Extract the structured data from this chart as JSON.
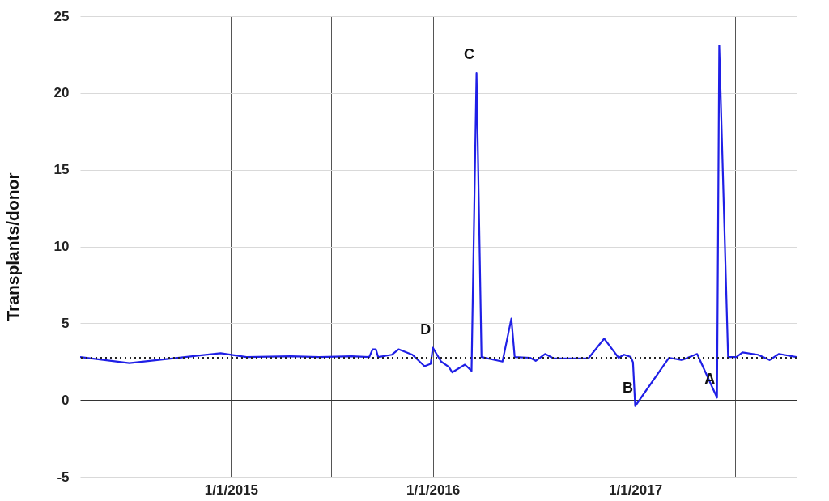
{
  "chart_data": {
    "type": "line",
    "ylabel": "Transplants/donor",
    "x": [
      "2014-04-03",
      "2014-07-01",
      "2014-12-13",
      "2015-01-29",
      "2015-04-19",
      "2015-06-09",
      "2015-08-07",
      "2015-09-08",
      "2015-09-14",
      "2015-09-20",
      "2015-09-24",
      "2015-10-19",
      "2015-10-31",
      "2015-11-25",
      "2015-12-17",
      "2015-12-28",
      "2016-01-01",
      "2016-01-16",
      "2016-01-30",
      "2016-02-05",
      "2016-02-28",
      "2016-03-11",
      "2016-03-20",
      "2016-03-29",
      "2016-05-06",
      "2016-05-22",
      "2016-05-28",
      "2016-06-25",
      "2016-07-05",
      "2016-07-22",
      "2016-08-07",
      "2016-10-08",
      "2016-11-06",
      "2016-12-02",
      "2016-12-12",
      "2016-12-24",
      "2016-12-28",
      "2017-01-01",
      "2017-03-03",
      "2017-03-27",
      "2017-04-23",
      "2017-05-29",
      "2017-06-02",
      "2017-06-18",
      "2017-07-03",
      "2017-07-14",
      "2017-08-11",
      "2017-09-01",
      "2017-09-18",
      "2017-10-20"
    ],
    "series": [
      {
        "color": "#1f1fe6",
        "values": [
          2.8,
          2.4,
          3.05,
          2.8,
          2.85,
          2.8,
          2.85,
          2.8,
          3.3,
          3.3,
          2.8,
          2.95,
          3.3,
          2.95,
          2.2,
          2.35,
          3.4,
          2.5,
          2.15,
          1.8,
          2.3,
          1.9,
          21.3,
          2.8,
          2.5,
          5.3,
          2.8,
          2.75,
          2.55,
          3.0,
          2.7,
          2.7,
          4.0,
          2.75,
          2.95,
          2.8,
          2.45,
          -0.4,
          2.75,
          2.6,
          3.0,
          0.15,
          23.1,
          2.8,
          2.8,
          3.1,
          2.95,
          2.6,
          3.0,
          2.8
        ]
      }
    ],
    "xlim": [
      "2014-04-03",
      "2017-10-20"
    ],
    "xticks": [
      {
        "value": "2014-07-01",
        "label": null
      },
      {
        "value": "2015-01-01",
        "label": "1/1/2015"
      },
      {
        "value": "2015-07-01",
        "label": null
      },
      {
        "value": "2016-01-01",
        "label": "1/1/2016"
      },
      {
        "value": "2016-07-01",
        "label": null
      },
      {
        "value": "2017-01-01",
        "label": "1/1/2017"
      },
      {
        "value": "2017-07-01",
        "label": null
      }
    ],
    "ylim": [
      -5,
      25
    ],
    "yticks": [
      -5,
      0,
      5,
      10,
      15,
      20,
      25
    ],
    "ref_lines": [
      {
        "axis": "y",
        "value": 2.75,
        "color": "#222222",
        "line_style": "dotted"
      }
    ],
    "annotations": [
      {
        "text": "D",
        "x": "2016-01-01",
        "y": 3.4
      },
      {
        "text": "C",
        "x": "2016-03-20",
        "y": 21.3
      },
      {
        "text": "B",
        "x": "2017-01-01",
        "y": -0.4
      },
      {
        "text": "A",
        "x": "2017-05-29",
        "y": 0.15
      }
    ],
    "grid": true,
    "legend": false,
    "marker": "none",
    "line_style": "solid"
  }
}
